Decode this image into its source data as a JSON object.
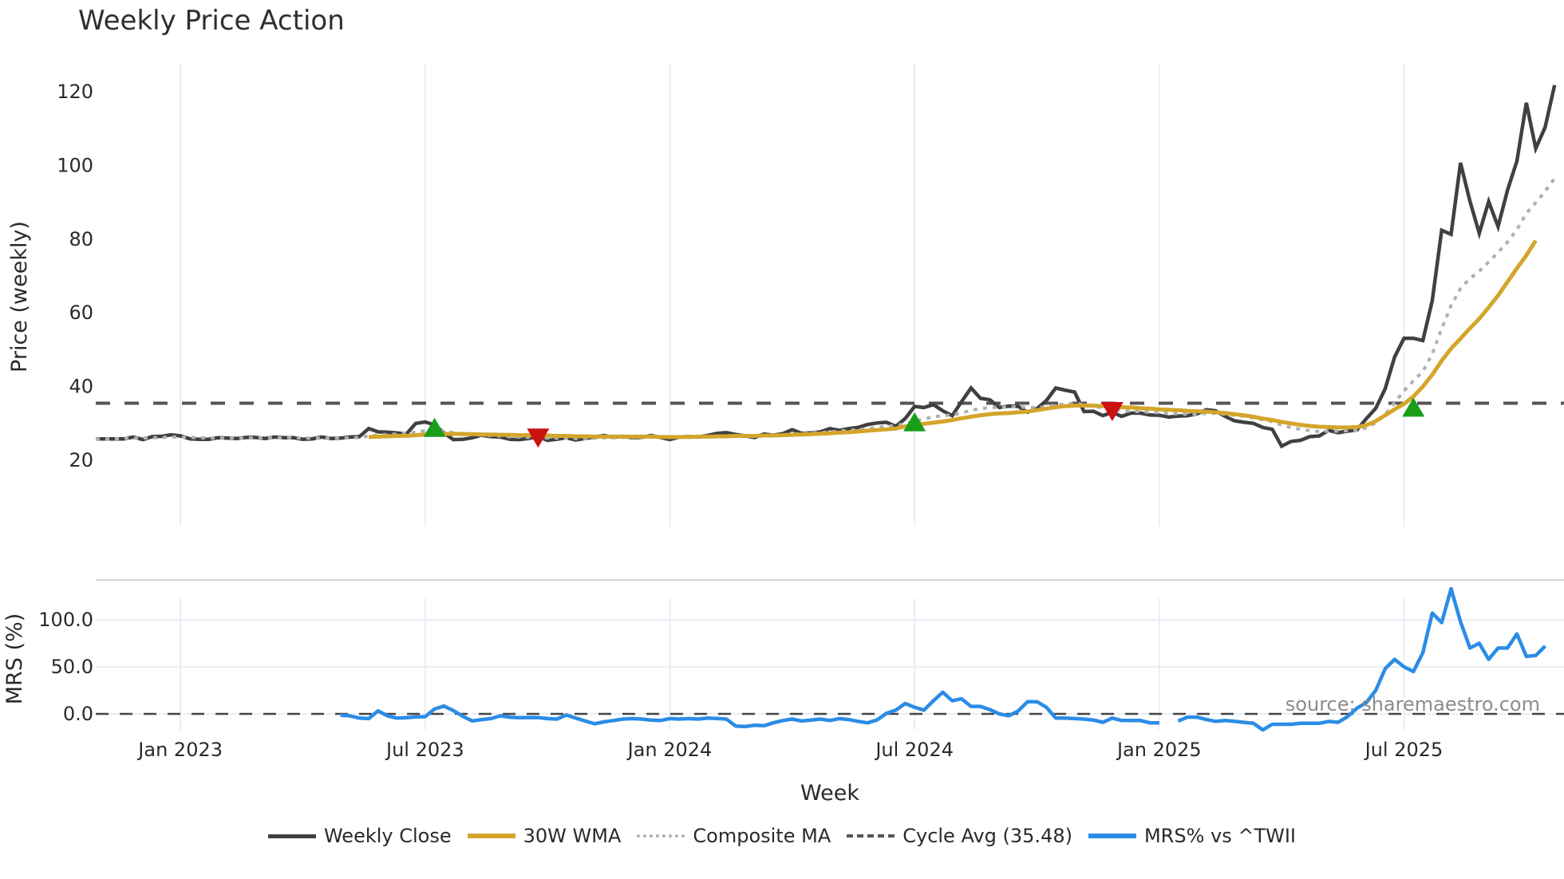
{
  "title": "Weekly Price Action",
  "source_note": "source: sharemaestro.com",
  "colors": {
    "weekly_close": "#404040",
    "wma": "#d4a52a",
    "composite": "#b0b0b0",
    "cycle_avg": "#555555",
    "mrs": "#2b8ce6",
    "buy_marker": "#1a9e1a",
    "sell_marker": "#cc1111",
    "grid": "#e9eef5"
  },
  "legend": [
    {
      "key": "weekly_close",
      "label": "Weekly Close",
      "style": "solid"
    },
    {
      "key": "wma",
      "label": "30W WMA",
      "style": "solid"
    },
    {
      "key": "composite",
      "label": "Composite MA",
      "style": "dotted"
    },
    {
      "key": "cycle_avg",
      "label": "Cycle Avg (35.48)",
      "style": "dashed"
    },
    {
      "key": "mrs",
      "label": "MRS% vs ^TWII",
      "style": "solid"
    }
  ],
  "chart_data": [
    {
      "type": "line",
      "title": "Weekly Price Action",
      "xlabel": "Week",
      "ylabel": "Price (weekly)",
      "ylim": [
        18,
        124
      ],
      "yticks": [
        20,
        40,
        60,
        80,
        100,
        120
      ],
      "xtick_labels": [
        "Jan 2023",
        "Jul 2023",
        "Jan 2024",
        "Jul 2024",
        "Jan 2025",
        "Jul 2025"
      ],
      "xtick_weeks": [
        9,
        35,
        61,
        87,
        113,
        139
      ],
      "x_range_weeks": [
        0,
        156
      ],
      "grid": true,
      "legend_position": "bottom",
      "cycle_avg": 35.48,
      "series": [
        {
          "name": "Weekly Close",
          "start_week": 0,
          "values": [
            25.8,
            25.8,
            25.8,
            25.8,
            26.3,
            25.6,
            26.4,
            26.5,
            26.9,
            26.6,
            25.8,
            25.7,
            25.7,
            26.1,
            26.0,
            25.9,
            26.2,
            26.2,
            25.9,
            26.3,
            26.1,
            26.1,
            25.7,
            25.8,
            26.3,
            25.9,
            26.0,
            26.3,
            26.4,
            28.6,
            27.7,
            27.6,
            27.4,
            27.1,
            30.0,
            30.4,
            29.6,
            27.4,
            25.6,
            25.7,
            26.1,
            26.8,
            26.4,
            26.3,
            25.7,
            25.6,
            25.9,
            26.4,
            25.4,
            25.7,
            26.1,
            25.5,
            25.9,
            26.3,
            26.7,
            26.2,
            26.5,
            26.1,
            26.2,
            26.7,
            26.2,
            25.6,
            26.3,
            26.4,
            26.3,
            26.7,
            27.3,
            27.5,
            27.0,
            26.6,
            26.2,
            27.1,
            26.8,
            27.2,
            28.3,
            27.3,
            27.4,
            27.7,
            28.6,
            28.1,
            28.6,
            28.9,
            29.7,
            30.1,
            30.3,
            29.2,
            31.3,
            34.6,
            34.3,
            35.1,
            33.4,
            32.1,
            35.9,
            39.6,
            36.8,
            36.4,
            34.3,
            34.7,
            34.6,
            33.0,
            34.0,
            36.2,
            39.6,
            39.0,
            38.5,
            33.2,
            33.3,
            32.1,
            33.0,
            31.9,
            32.8,
            32.8,
            32.3,
            32.2,
            31.7,
            32.0,
            32.1,
            32.6,
            33.7,
            33.4,
            31.9,
            30.7,
            30.3,
            30.0,
            28.9,
            28.4,
            23.8,
            25.1,
            25.4,
            26.4,
            26.6,
            28.1,
            27.5,
            27.9,
            28.2,
            31.3,
            34.1,
            39.4,
            48.0,
            53.1,
            53.1,
            52.5,
            63.3,
            82.4,
            81.3,
            100.7,
            90.3,
            81.6,
            90.2,
            83.4,
            93.3,
            101.2,
            117.0,
            104.6,
            110.4,
            121.8
          ]
        },
        {
          "name": "30W WMA",
          "start_week": 29,
          "values": [
            26.3,
            26.4,
            26.5,
            26.6,
            26.6,
            26.8,
            27.0,
            27.1,
            27.1,
            27.2,
            27.1,
            27.1,
            27.0,
            27.0,
            26.9,
            26.9,
            26.8,
            26.8,
            26.7,
            26.7,
            26.6,
            26.6,
            26.5,
            26.5,
            26.4,
            26.4,
            26.4,
            26.4,
            26.4,
            26.4,
            26.4,
            26.3,
            26.3,
            26.3,
            26.3,
            26.4,
            26.4,
            26.5,
            26.5,
            26.6,
            26.6,
            26.6,
            26.7,
            26.7,
            26.8,
            26.9,
            27.0,
            27.1,
            27.2,
            27.3,
            27.5,
            27.6,
            27.8,
            28.0,
            28.2,
            28.4,
            28.6,
            29.2,
            29.6,
            29.9,
            30.2,
            30.5,
            30.9,
            31.4,
            31.8,
            32.2,
            32.5,
            32.7,
            32.8,
            33.0,
            33.2,
            33.6,
            34.0,
            34.4,
            34.7,
            34.8,
            34.9,
            34.8,
            34.7,
            34.6,
            34.4,
            34.3,
            34.1,
            34.0,
            33.8,
            33.7,
            33.6,
            33.4,
            33.3,
            33.2,
            33.0,
            32.8,
            32.5,
            32.2,
            31.8,
            31.3,
            30.9,
            30.4,
            30.0,
            29.6,
            29.3,
            29.1,
            29.0,
            28.9,
            28.9,
            29.0,
            29.5,
            30.6,
            32.2,
            33.8,
            35.3,
            37.3,
            40.0,
            43.2,
            47.0,
            50.3,
            53.0,
            55.8,
            58.4,
            61.5,
            64.7,
            68.4,
            72.1,
            75.6,
            79.6
          ]
        },
        {
          "name": "Composite MA",
          "start_week": 0,
          "values": [
            25.8,
            25.8,
            25.8,
            25.9,
            26.0,
            26.0,
            26.1,
            26.2,
            26.3,
            26.3,
            26.2,
            26.1,
            26.0,
            26.0,
            26.0,
            26.0,
            26.0,
            26.1,
            26.1,
            26.1,
            26.1,
            26.1,
            26.0,
            26.0,
            26.0,
            26.0,
            26.0,
            26.1,
            26.2,
            26.6,
            26.8,
            27.0,
            27.1,
            27.2,
            27.6,
            28.0,
            28.1,
            27.9,
            27.5,
            27.2,
            26.9,
            26.8,
            26.7,
            26.6,
            26.4,
            26.3,
            26.2,
            26.2,
            26.0,
            26.0,
            26.0,
            25.9,
            25.9,
            26.0,
            26.1,
            26.1,
            26.2,
            26.2,
            26.2,
            26.3,
            26.3,
            26.2,
            26.2,
            26.3,
            26.3,
            26.4,
            26.5,
            26.6,
            26.7,
            26.7,
            26.7,
            26.8,
            26.8,
            26.9,
            27.1,
            27.2,
            27.4,
            27.5,
            27.7,
            27.9,
            28.1,
            28.3,
            28.6,
            28.9,
            29.2,
            29.4,
            29.9,
            30.6,
            31.2,
            31.8,
            32.1,
            32.3,
            32.8,
            33.6,
            34.0,
            34.3,
            34.4,
            34.5,
            34.5,
            34.3,
            34.3,
            34.5,
            35.0,
            35.3,
            35.5,
            35.1,
            34.7,
            34.2,
            33.9,
            33.5,
            33.3,
            33.2,
            33.0,
            32.9,
            32.7,
            32.6,
            32.5,
            32.5,
            32.7,
            32.7,
            32.5,
            32.2,
            31.9,
            31.5,
            31.0,
            30.5,
            29.5,
            28.9,
            28.4,
            28.0,
            27.8,
            27.9,
            27.9,
            28.0,
            28.1,
            28.8,
            30.1,
            32.4,
            35.6,
            38.8,
            41.6,
            44.1,
            48.8,
            55.7,
            62.0,
            66.6,
            69.3,
            71.3,
            73.8,
            76.4,
            79.2,
            82.6,
            87.0,
            89.9,
            93.0,
            96.5
          ]
        }
      ],
      "markers": [
        {
          "type": "buy",
          "week": 36,
          "price": 28.5
        },
        {
          "type": "sell",
          "week": 47,
          "price": 26.0
        },
        {
          "type": "buy",
          "week": 87,
          "price": 30.0
        },
        {
          "type": "sell",
          "week": 108,
          "price": 33.2
        },
        {
          "type": "buy",
          "week": 140,
          "price": 34.0
        }
      ]
    },
    {
      "type": "line",
      "title": "",
      "xlabel": "Week",
      "ylabel": "MRS (%)",
      "ylim": [
        -18,
        140
      ],
      "yticks": [
        0.0,
        50.0,
        100.0
      ],
      "ytick_labels": [
        "0.0",
        "50.0",
        "100.0"
      ],
      "zero_line": "dashed",
      "grid": true,
      "series": [
        {
          "name": "MRS% vs ^TWII",
          "start_week": 26,
          "values": [
            -1.5,
            -2.0,
            -4.5,
            -5.0,
            3.2,
            -2.0,
            -4.5,
            -4.0,
            -3.2,
            -3.0,
            5.2,
            8.4,
            3.5,
            -2.5,
            -7.5,
            -6.0,
            -5.0,
            -2.0,
            -3.5,
            -4.0,
            -3.8,
            -3.9,
            -5.0,
            -5.5,
            -1.2,
            -4.5,
            -7.5,
            -10.5,
            -8.5,
            -7.0,
            -5.5,
            -5.0,
            -5.5,
            -6.5,
            -7.0,
            -5.0,
            -5.5,
            -5.0,
            -5.5,
            -4.5,
            -4.8,
            -5.5,
            -13.0,
            -13.5,
            -12.0,
            -12.5,
            -9.5,
            -7.0,
            -5.5,
            -7.5,
            -6.5,
            -5.5,
            -7.0,
            -5.0,
            -6.0,
            -8.0,
            -9.5,
            -6.5,
            0.5,
            4.0,
            11.0,
            7.0,
            4.0,
            14.0,
            23.0,
            14.0,
            16.0,
            8.0,
            8.0,
            4.5,
            0.0,
            -2.0,
            3.0,
            13.0,
            13.0,
            7.0,
            -4.5,
            -4.5,
            -5.0,
            -5.5,
            -6.5,
            -9.0,
            -4.5,
            -7.0,
            -7.0,
            -7.0,
            -9.5,
            -9.5,
            null,
            -7.5,
            -3.5,
            -3.5,
            -6.0,
            -8.0,
            -7.0,
            -8.0,
            -9.0,
            -10.0,
            -17.0,
            -11.0,
            -11.0,
            -11.0,
            -10.0,
            -10.0,
            -10.0,
            -8.0,
            -9.0,
            -3.0,
            6.0,
            12.0,
            25.0,
            48.0,
            58.0,
            50.0,
            45.0,
            65.0,
            107.0,
            97.0,
            133.0,
            98.0,
            70.0,
            75.0,
            58.0,
            70.0,
            70.0,
            85.0,
            61.0,
            62.0,
            72.0
          ]
        }
      ]
    }
  ]
}
